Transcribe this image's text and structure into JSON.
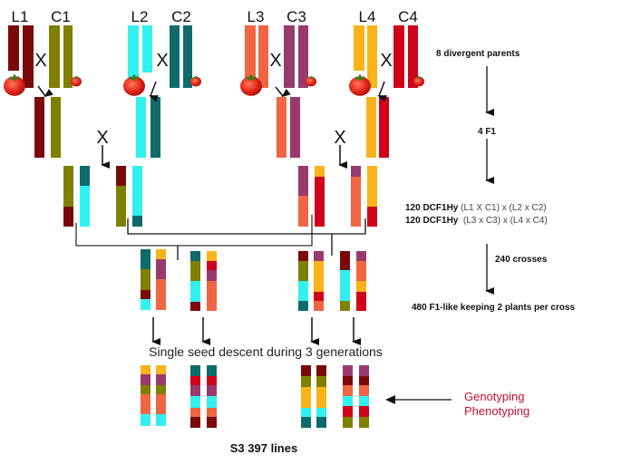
{
  "parents": {
    "labels": [
      "L1",
      "C1",
      "L2",
      "C2",
      "L3",
      "C3",
      "L4",
      "C4"
    ],
    "cross_symbol": "X"
  },
  "palette": {
    "dark_red": "#7a0a0a",
    "olive": "#808000",
    "cyan": "#33f0f0",
    "teal": "#0e6b6b",
    "coral": "#ef6643",
    "purple": "#983a6e",
    "orange": "#fbb31a",
    "red": "#d0021b"
  },
  "middle": {
    "ssd_label": "Single seed descent during 3 generations",
    "final_label": "S3 397 lines"
  },
  "steps": {
    "parents": "8 divergent parents",
    "f1": "4 F1",
    "dcf1_a_bold": "120 DCF1Hy",
    "dcf1_a_rest": " (L1 X C1) x (L2 x C2)",
    "dcf1_b_bold": "120 DCF1Hy",
    "dcf1_b_rest": "  (L3 x C3) x (L4 x C4)",
    "crosses": "240 crosses",
    "f1_like": "480 F1-like keeping 2 plants per cross"
  },
  "annotation": {
    "line1": "Genotyping",
    "line2": "Phenotyping",
    "color": "#c8102e"
  }
}
